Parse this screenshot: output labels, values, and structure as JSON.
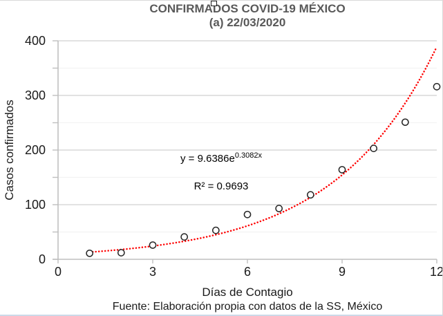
{
  "title": {
    "line1": "CONFIRMADOS COVID-19 MÉXICO",
    "line2": "(a) 22/03/2020"
  },
  "annotations": {
    "equation_base": "y = 9.6386e",
    "equation_exponent": "0.3082x",
    "r_squared": "R² = 0.9693"
  },
  "footer": {
    "source": "Fuente: Elaboración propia con datos de la SS, México"
  },
  "chart_data": {
    "type": "scatter",
    "title": "CONFIRMADOS COVID-19 MÉXICO (a) 22/03/2020",
    "xlabel": "Días de Contagio",
    "ylabel": "Casos confirmados",
    "x": [
      1,
      2,
      3,
      4,
      5,
      6,
      7,
      8,
      9,
      10,
      11,
      12
    ],
    "values": [
      11,
      12,
      26,
      41,
      53,
      82,
      93,
      118,
      164,
      203,
      251,
      316
    ],
    "xlim": [
      0,
      12
    ],
    "ylim": [
      0,
      400
    ],
    "x_ticks": [
      0,
      3,
      6,
      9,
      12
    ],
    "y_ticks": [
      0,
      100,
      200,
      300,
      400
    ],
    "y_minor_step": 50,
    "grid": true,
    "legend": "none",
    "trendline": {
      "type": "exponential",
      "a": 9.6386,
      "b": 0.3082,
      "equation": "y = 9.6386e^(0.3082x)",
      "r2": 0.9693,
      "x_start": 1,
      "x_end": 12,
      "style": "dotted"
    },
    "colors": {
      "trendline": "#ff0000",
      "point_stroke": "#262626",
      "point_fill": "#ffffff",
      "grid_major": "#d9d9d9",
      "grid_minor": "#f2f2f2",
      "axis": "#bfbfbf",
      "tick_text": "#1a1a1a",
      "title_text": "#595959"
    }
  }
}
